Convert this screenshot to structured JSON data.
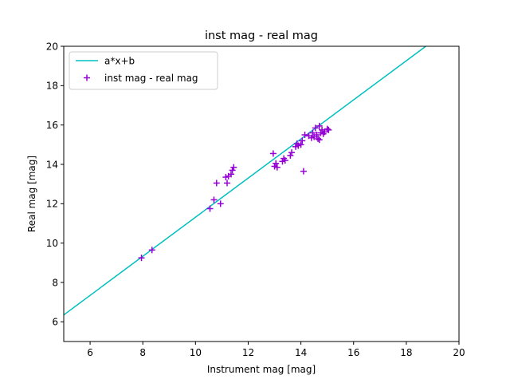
{
  "chart_data": {
    "type": "scatter",
    "title": "inst mag - real mag",
    "xlabel": "Instrument mag [mag]",
    "ylabel": "Real mag [mag]",
    "xlim": [
      5,
      20
    ],
    "ylim": [
      5,
      20
    ],
    "xticks": [
      6,
      8,
      10,
      12,
      14,
      16,
      18,
      20
    ],
    "yticks": [
      6,
      8,
      10,
      12,
      14,
      16,
      18,
      20
    ],
    "grid": false,
    "legend_position": "top-left",
    "fit_line": {
      "name": "a*x+b",
      "color": "#00bfbf",
      "x": [
        5,
        18.74
      ],
      "y": [
        6.35,
        20
      ]
    },
    "series": [
      {
        "name": "inst mag - real mag",
        "color": "#9400d3",
        "marker": "+",
        "points": [
          [
            7.95,
            9.25
          ],
          [
            8.35,
            9.65
          ],
          [
            10.55,
            11.75
          ],
          [
            10.7,
            12.2
          ],
          [
            10.8,
            13.05
          ],
          [
            10.95,
            12.0
          ],
          [
            11.15,
            13.35
          ],
          [
            11.2,
            13.05
          ],
          [
            11.25,
            13.4
          ],
          [
            11.35,
            13.5
          ],
          [
            11.4,
            13.7
          ],
          [
            11.45,
            13.85
          ],
          [
            12.95,
            14.55
          ],
          [
            13.0,
            13.9
          ],
          [
            13.05,
            14.05
          ],
          [
            13.1,
            13.85
          ],
          [
            13.3,
            14.15
          ],
          [
            13.35,
            14.3
          ],
          [
            13.4,
            14.2
          ],
          [
            13.6,
            14.45
          ],
          [
            13.65,
            14.6
          ],
          [
            13.8,
            14.9
          ],
          [
            13.85,
            15.05
          ],
          [
            13.9,
            14.95
          ],
          [
            14.0,
            15.0
          ],
          [
            14.05,
            15.2
          ],
          [
            14.1,
            13.65
          ],
          [
            14.15,
            15.5
          ],
          [
            14.3,
            15.45
          ],
          [
            14.4,
            15.35
          ],
          [
            14.45,
            15.6
          ],
          [
            14.5,
            15.4
          ],
          [
            14.55,
            15.85
          ],
          [
            14.6,
            15.5
          ],
          [
            14.65,
            15.3
          ],
          [
            14.7,
            15.95
          ],
          [
            14.7,
            15.25
          ],
          [
            14.75,
            15.6
          ],
          [
            14.8,
            15.75
          ],
          [
            14.85,
            15.55
          ],
          [
            14.9,
            15.65
          ],
          [
            15.0,
            15.8
          ],
          [
            15.05,
            15.75
          ]
        ]
      }
    ]
  }
}
